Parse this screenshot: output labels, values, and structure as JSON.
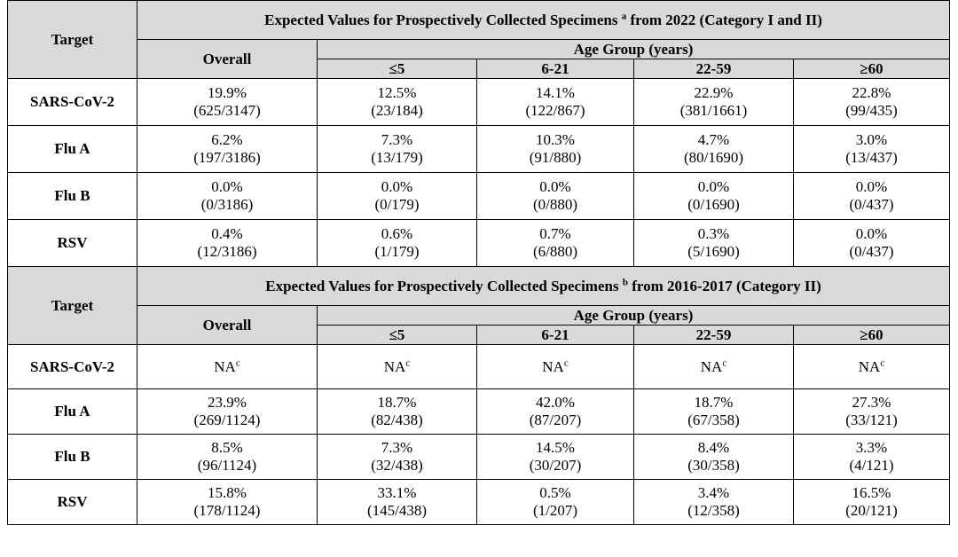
{
  "sections": [
    {
      "caption": "Expected Values for Prospectively Collected Specimens",
      "sup": "a",
      "caption_tail": "from 2022 (Category I and II)",
      "target_label": "Target",
      "overall_label": "Overall",
      "age_group_label": "Age Group (years)",
      "age_groups": [
        "≤5",
        "6-21",
        "22-59",
        "≥60"
      ],
      "rows": [
        {
          "target": "SARS-CoV-2",
          "cells": [
            {
              "pct": "19.9%",
              "frac": "(625/3147)"
            },
            {
              "pct": "12.5%",
              "frac": "(23/184)"
            },
            {
              "pct": "14.1%",
              "frac": "(122/867)"
            },
            {
              "pct": "22.9%",
              "frac": "(381/1661)"
            },
            {
              "pct": "22.8%",
              "frac": "(99/435)"
            }
          ]
        },
        {
          "target": "Flu A",
          "cells": [
            {
              "pct": "6.2%",
              "frac": "(197/3186)"
            },
            {
              "pct": "7.3%",
              "frac": "(13/179)"
            },
            {
              "pct": "10.3%",
              "frac": "(91/880)"
            },
            {
              "pct": "4.7%",
              "frac": "(80/1690)"
            },
            {
              "pct": "3.0%",
              "frac": "(13/437)"
            }
          ]
        },
        {
          "target": "Flu B",
          "cells": [
            {
              "pct": "0.0%",
              "frac": "(0/3186)"
            },
            {
              "pct": "0.0%",
              "frac": "(0/179)"
            },
            {
              "pct": "0.0%",
              "frac": "(0/880)"
            },
            {
              "pct": "0.0%",
              "frac": "(0/1690)"
            },
            {
              "pct": "0.0%",
              "frac": "(0/437)"
            }
          ]
        },
        {
          "target": "RSV",
          "cells": [
            {
              "pct": "0.4%",
              "frac": "(12/3186)"
            },
            {
              "pct": "0.6%",
              "frac": "(1/179)"
            },
            {
              "pct": "0.7%",
              "frac": "(6/880)"
            },
            {
              "pct": "0.3%",
              "frac": "(5/1690)"
            },
            {
              "pct": "0.0%",
              "frac": "(0/437)"
            }
          ]
        }
      ]
    },
    {
      "caption": "Expected Values for Prospectively Collected Specimens",
      "sup": "b",
      "caption_tail": "from 2016-2017 (Category II)",
      "target_label": "Target",
      "overall_label": "Overall",
      "age_group_label": "Age Group (years)",
      "age_groups": [
        "≤5",
        "6-21",
        "22-59",
        "≥60"
      ],
      "na_row": {
        "target": "SARS-CoV-2",
        "text": "NA",
        "sup": "c"
      },
      "rows": [
        {
          "target": "Flu A",
          "cells": [
            {
              "pct": "23.9%",
              "frac": "(269/1124)"
            },
            {
              "pct": "18.7%",
              "frac": "(82/438)"
            },
            {
              "pct": "42.0%",
              "frac": "(87/207)"
            },
            {
              "pct": "18.7%",
              "frac": "(67/358)"
            },
            {
              "pct": "27.3%",
              "frac": "(33/121)"
            }
          ]
        },
        {
          "target": "Flu B",
          "cells": [
            {
              "pct": "8.5%",
              "frac": "(96/1124)"
            },
            {
              "pct": "7.3%",
              "frac": "(32/438)"
            },
            {
              "pct": "14.5%",
              "frac": "(30/207)"
            },
            {
              "pct": "8.4%",
              "frac": "(30/358)"
            },
            {
              "pct": "3.3%",
              "frac": "(4/121)"
            }
          ]
        },
        {
          "target": "RSV",
          "cells": [
            {
              "pct": "15.8%",
              "frac": "(178/1124)"
            },
            {
              "pct": "33.1%",
              "frac": "(145/438)"
            },
            {
              "pct": "0.5%",
              "frac": "(1/207)"
            },
            {
              "pct": "3.4%",
              "frac": "(12/358)"
            },
            {
              "pct": "16.5%",
              "frac": "(20/121)"
            }
          ]
        }
      ]
    }
  ]
}
